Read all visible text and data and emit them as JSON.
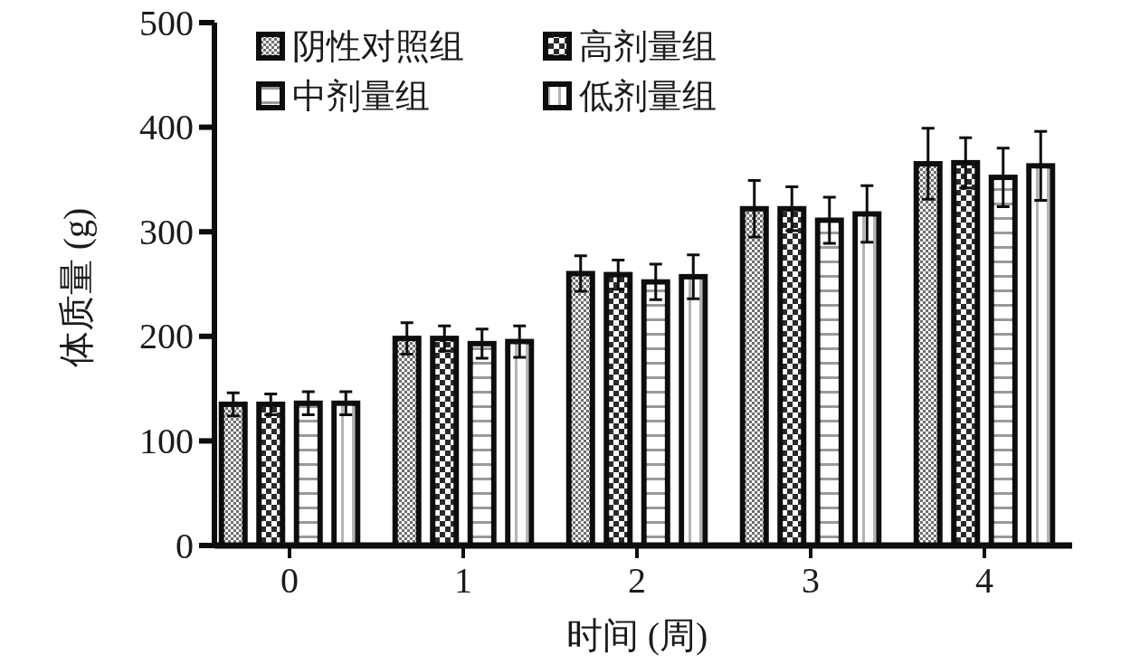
{
  "chart_data": {
    "type": "bar",
    "categories": [
      "0",
      "1",
      "2",
      "3",
      "4"
    ],
    "xlabel": "时间 (周)",
    "ylabel": "体质量 (g)",
    "ylim": [
      0,
      500
    ],
    "yticks": [
      0,
      100,
      200,
      300,
      400,
      500
    ],
    "legend": "top left",
    "series": [
      {
        "name": "阴性对照组",
        "color": "#6e6e6e",
        "values": [
          135,
          198,
          260,
          322,
          365
        ],
        "errors": [
          11,
          15,
          17,
          27,
          34
        ]
      },
      {
        "name": "高剂量组",
        "color": "#2a2a2a",
        "values": [
          135,
          198,
          259,
          322,
          366
        ],
        "errors": [
          10,
          12,
          14,
          21,
          24
        ]
      },
      {
        "name": "中剂量组",
        "color": "#9a9a9a",
        "values": [
          136,
          193,
          252,
          311,
          352
        ],
        "errors": [
          11,
          14,
          17,
          22,
          28
        ]
      },
      {
        "name": "低剂量组",
        "color": "#b4b4b4",
        "values": [
          136,
          195,
          257,
          317,
          363
        ],
        "errors": [
          11,
          15,
          21,
          27,
          33
        ]
      }
    ]
  }
}
